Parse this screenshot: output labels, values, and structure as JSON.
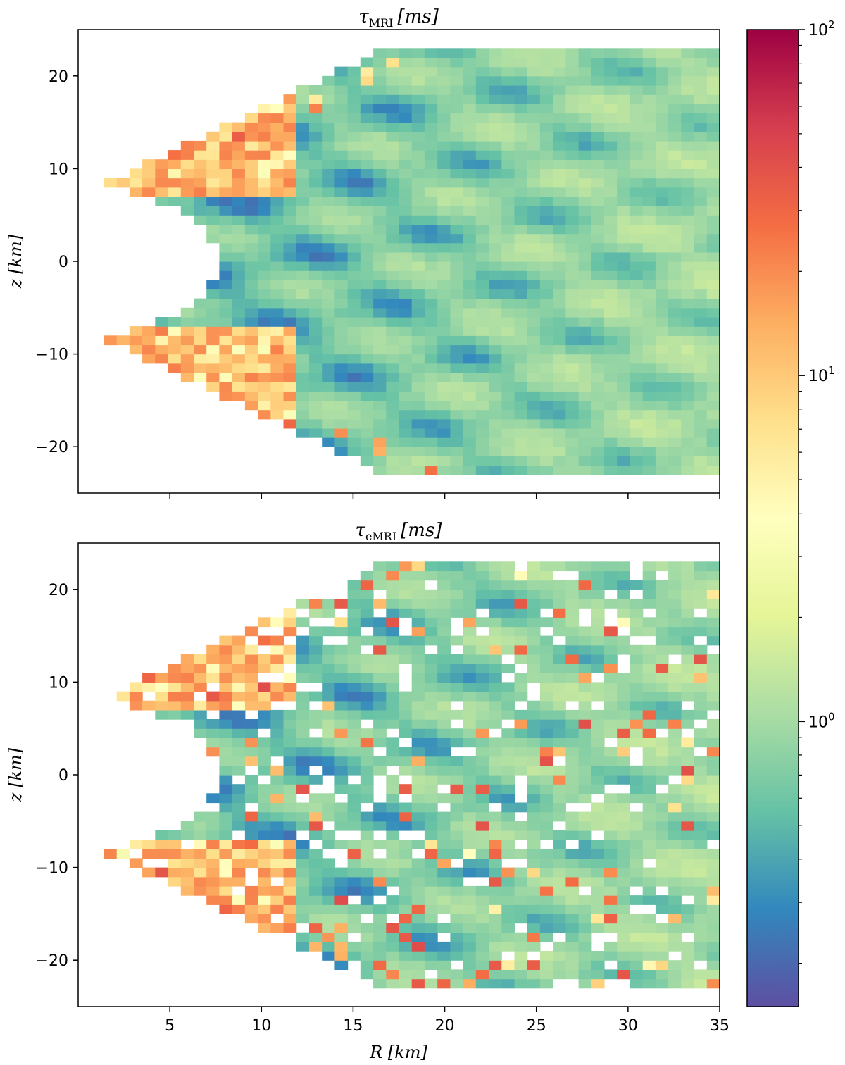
{
  "chart_data": [
    {
      "type": "heatmap",
      "title": "τMRI [ms]",
      "title_main": "τ",
      "title_sub": "MRI",
      "title_unit": "[ms]",
      "xlabel": "",
      "ylabel": "z [km]",
      "xlim": [
        0,
        35
      ],
      "ylim": [
        -25,
        25
      ],
      "xticks": [
        5,
        10,
        15,
        20,
        25,
        30,
        35
      ],
      "xtick_labels_visible": false,
      "yticks": [
        -20,
        -10,
        0,
        10,
        20
      ],
      "ytick_labels": [
        "−20",
        "−10",
        "0",
        "10",
        "20"
      ],
      "grid": false,
      "field": "smooth",
      "note": "2D field of MRI growth timescale in (R, z), typical values ~0.3–2 ms, higher (≥10 ms) near inner edges"
    },
    {
      "type": "heatmap",
      "title": "τeMRI [ms]",
      "title_main": "τ",
      "title_sub": "eMRI",
      "title_unit": "[ms]",
      "xlabel": "R [km]",
      "ylabel": "z [km]",
      "xlim": [
        0,
        35
      ],
      "ylim": [
        -25,
        25
      ],
      "xticks": [
        5,
        10,
        15,
        20,
        25,
        30,
        35
      ],
      "xtick_labels": [
        "5",
        "10",
        "15",
        "20",
        "25",
        "30",
        "35"
      ],
      "yticks": [
        -20,
        -10,
        0,
        10,
        20
      ],
      "ytick_labels": [
        "−20",
        "−10",
        "0",
        "10",
        "20"
      ],
      "grid": false,
      "field": "noisy"
    }
  ],
  "colorbar": {
    "scale": "log",
    "range": [
      0.15,
      100
    ],
    "colormap": "Spectral_r",
    "ticks": [
      {
        "value": 1,
        "base": "10",
        "exp": "0"
      },
      {
        "value": 10,
        "base": "10",
        "exp": "1"
      },
      {
        "value": 100,
        "base": "10",
        "exp": "2"
      }
    ],
    "colors": [
      "#5e4fa2",
      "#3288bd",
      "#66c2a5",
      "#abdda4",
      "#e6f598",
      "#ffffbf",
      "#fee08b",
      "#fdae61",
      "#f46d43",
      "#d53e4f",
      "#9e0142"
    ]
  }
}
